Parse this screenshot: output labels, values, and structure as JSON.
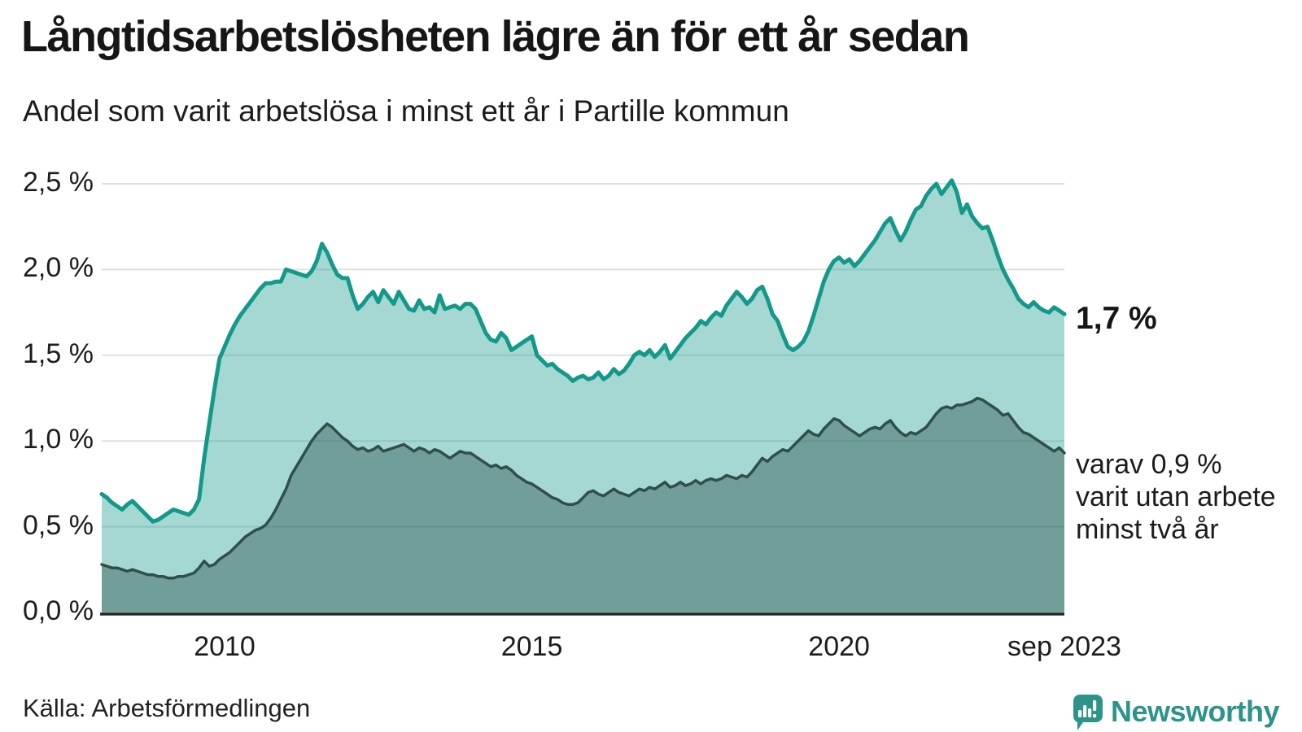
{
  "header": {
    "title": "Långtidsarbetslösheten lägre än för ett år sedan",
    "subtitle": "Andel som varit arbetslösa i minst ett år i Partille kommun"
  },
  "chart_data": {
    "type": "area",
    "title": "Långtidsarbetslösheten lägre än för ett år sedan",
    "subtitle": "Andel som varit arbetslösa i minst ett år i Partille kommun",
    "unit": "%",
    "frequency": "monthly",
    "x_start": "2008-01",
    "x_end": "2023-09",
    "ylim": [
      0,
      2.6
    ],
    "grid": "horizontal",
    "y_axis": {
      "ticks": [
        {
          "label": "0,0 %",
          "value": 0.0
        },
        {
          "label": "0,5 %",
          "value": 0.5
        },
        {
          "label": "1,0 %",
          "value": 1.0
        },
        {
          "label": "1,5 %",
          "value": 1.5
        },
        {
          "label": "2,0 %",
          "value": 2.0
        },
        {
          "label": "2,5 %",
          "value": 2.5
        }
      ]
    },
    "x_axis": {
      "ticks": [
        {
          "label": "2010",
          "month_index": 24
        },
        {
          "label": "2015",
          "month_index": 84
        },
        {
          "label": "2020",
          "month_index": 144
        },
        {
          "label": "sep 2023",
          "month_index": 188
        }
      ]
    },
    "series": [
      {
        "name": "Andel arbetslösa minst ett år",
        "color": "#13998a",
        "fill": "rgba(21,153,139,0.38)",
        "latest_label": "1,7 %",
        "values": [
          0.69,
          0.67,
          0.64,
          0.62,
          0.6,
          0.63,
          0.65,
          0.62,
          0.59,
          0.56,
          0.53,
          0.54,
          0.56,
          0.58,
          0.6,
          0.59,
          0.58,
          0.57,
          0.6,
          0.66,
          0.9,
          1.1,
          1.3,
          1.48,
          1.55,
          1.62,
          1.68,
          1.73,
          1.77,
          1.81,
          1.85,
          1.89,
          1.92,
          1.92,
          1.93,
          1.93,
          2.0,
          1.99,
          1.98,
          1.97,
          1.96,
          1.99,
          2.05,
          2.15,
          2.1,
          2.03,
          1.97,
          1.95,
          1.95,
          1.85,
          1.77,
          1.8,
          1.84,
          1.87,
          1.81,
          1.88,
          1.84,
          1.8,
          1.87,
          1.82,
          1.77,
          1.76,
          1.82,
          1.77,
          1.78,
          1.75,
          1.85,
          1.77,
          1.78,
          1.79,
          1.77,
          1.8,
          1.8,
          1.77,
          1.7,
          1.63,
          1.59,
          1.58,
          1.63,
          1.6,
          1.53,
          1.55,
          1.57,
          1.59,
          1.61,
          1.5,
          1.47,
          1.44,
          1.45,
          1.42,
          1.4,
          1.38,
          1.35,
          1.37,
          1.38,
          1.36,
          1.37,
          1.4,
          1.36,
          1.38,
          1.42,
          1.39,
          1.41,
          1.45,
          1.5,
          1.52,
          1.5,
          1.53,
          1.49,
          1.52,
          1.56,
          1.48,
          1.52,
          1.56,
          1.6,
          1.63,
          1.66,
          1.7,
          1.68,
          1.72,
          1.75,
          1.73,
          1.79,
          1.83,
          1.87,
          1.84,
          1.8,
          1.83,
          1.88,
          1.9,
          1.83,
          1.74,
          1.7,
          1.62,
          1.55,
          1.53,
          1.55,
          1.58,
          1.64,
          1.73,
          1.83,
          1.93,
          2.0,
          2.05,
          2.07,
          2.04,
          2.06,
          2.02,
          2.05,
          2.09,
          2.13,
          2.17,
          2.22,
          2.27,
          2.3,
          2.23,
          2.17,
          2.22,
          2.29,
          2.35,
          2.37,
          2.43,
          2.47,
          2.5,
          2.44,
          2.48,
          2.52,
          2.45,
          2.33,
          2.38,
          2.31,
          2.27,
          2.24,
          2.25,
          2.17,
          2.08,
          2.0,
          1.94,
          1.89,
          1.83,
          1.8,
          1.78,
          1.81,
          1.78,
          1.76,
          1.75,
          1.78,
          1.76,
          1.74
        ]
      },
      {
        "name": "Andel arbetslösa minst två år",
        "color": "#2f4f4a",
        "fill": "rgba(42,79,74,0.42)",
        "latest_label": "0,9 %",
        "values": [
          0.28,
          0.27,
          0.26,
          0.26,
          0.25,
          0.24,
          0.25,
          0.24,
          0.23,
          0.22,
          0.22,
          0.21,
          0.21,
          0.2,
          0.2,
          0.21,
          0.21,
          0.22,
          0.23,
          0.26,
          0.3,
          0.27,
          0.28,
          0.31,
          0.33,
          0.35,
          0.38,
          0.41,
          0.44,
          0.46,
          0.48,
          0.49,
          0.51,
          0.55,
          0.6,
          0.66,
          0.72,
          0.8,
          0.85,
          0.9,
          0.95,
          1.0,
          1.04,
          1.07,
          1.1,
          1.08,
          1.05,
          1.02,
          1.0,
          0.97,
          0.95,
          0.96,
          0.94,
          0.95,
          0.97,
          0.94,
          0.95,
          0.96,
          0.97,
          0.98,
          0.96,
          0.94,
          0.96,
          0.95,
          0.93,
          0.95,
          0.94,
          0.92,
          0.9,
          0.92,
          0.94,
          0.93,
          0.93,
          0.91,
          0.89,
          0.87,
          0.85,
          0.86,
          0.84,
          0.85,
          0.83,
          0.8,
          0.78,
          0.76,
          0.75,
          0.73,
          0.71,
          0.69,
          0.67,
          0.66,
          0.64,
          0.63,
          0.63,
          0.64,
          0.67,
          0.7,
          0.71,
          0.69,
          0.68,
          0.7,
          0.72,
          0.7,
          0.69,
          0.68,
          0.7,
          0.72,
          0.71,
          0.73,
          0.72,
          0.74,
          0.76,
          0.73,
          0.74,
          0.76,
          0.74,
          0.75,
          0.77,
          0.75,
          0.77,
          0.78,
          0.77,
          0.78,
          0.8,
          0.79,
          0.78,
          0.8,
          0.79,
          0.82,
          0.86,
          0.9,
          0.88,
          0.91,
          0.93,
          0.95,
          0.94,
          0.97,
          1.0,
          1.03,
          1.06,
          1.04,
          1.03,
          1.07,
          1.1,
          1.13,
          1.12,
          1.09,
          1.07,
          1.05,
          1.03,
          1.05,
          1.07,
          1.08,
          1.07,
          1.1,
          1.12,
          1.08,
          1.05,
          1.03,
          1.05,
          1.04,
          1.06,
          1.08,
          1.12,
          1.16,
          1.19,
          1.2,
          1.19,
          1.21,
          1.21,
          1.22,
          1.23,
          1.25,
          1.24,
          1.22,
          1.2,
          1.18,
          1.15,
          1.16,
          1.12,
          1.08,
          1.05,
          1.04,
          1.02,
          1.0,
          0.98,
          0.96,
          0.94,
          0.96,
          0.93
        ]
      }
    ],
    "annotations": {
      "latest_primary": "1,7 %",
      "secondary": "varav 0,9 %\nvarit utan arbete\nminst två år"
    },
    "legend_position": "none"
  },
  "footer": {
    "source": "Källa: Arbetsförmedlingen",
    "brand": "Newsworthy"
  },
  "colors": {
    "accent_teal": "#13998a",
    "dark_line": "#2f4f4a",
    "light_fill": "rgba(21,153,139,0.38)",
    "dark_fill": "rgba(42,79,74,0.42)",
    "gridline": "#e0e0e0",
    "axis": "#262626",
    "brand_teal": "#2d9489",
    "text": "#1a1a1a"
  }
}
